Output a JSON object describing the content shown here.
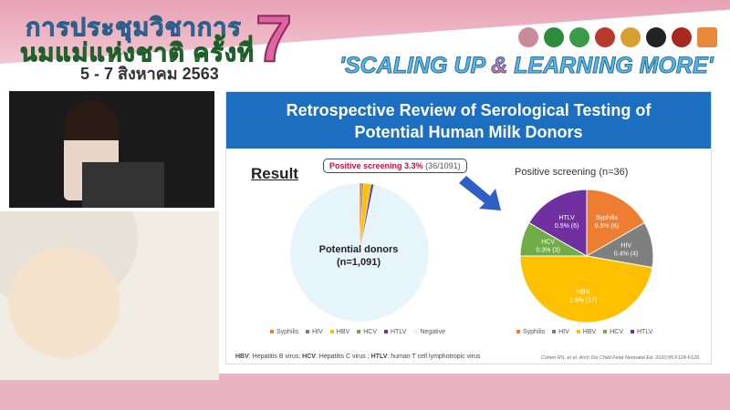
{
  "banner": {
    "title_line1": "การประชุมวิชาการ",
    "title_line2": "นมแม่แห่งชาติ ครั้งที่",
    "edition": "7",
    "dates": "5 - 7 สิงหาคม 2563",
    "tagline_part1": "'SCALING UP ",
    "tagline_amp": "&",
    "tagline_part2": " LEARNING MORE'"
  },
  "logos": [
    "breastfeeding-logo",
    "moh-logo",
    "moh-logo-2",
    "royal-college-logo",
    "royal-college-logo-2",
    "university-logo",
    "organization-logo",
    "thaihealth-logo"
  ],
  "slide": {
    "title_line1": "Retrospective Review of Serological Testing of",
    "title_line2": "Potential Human Milk Donors",
    "result_heading": "Result",
    "callout_bold": "Positive screening 3.3%",
    "callout_count": "(36/1091)",
    "left_center_label1": "Potential donors",
    "left_center_label2": "(n=1,091)",
    "right_title": "Positive screening (n=36)",
    "footnote": {
      "hbv": "HBV",
      "hbv_def": ": Hepatitis B virus; ",
      "hcv": "HCV",
      "hcv_def": ": Hepatitis C virus ; ",
      "htlv": "HTLV",
      "htlv_def": ": human T cell lymphotropic virus"
    },
    "citation": "Cohen RS, et al. Arch Dis Child Fetal Neonatal Ed. 2010;95:F118-F120."
  },
  "chart_data": [
    {
      "type": "pie",
      "title": "",
      "center_label": "Potential donors (n=1,091)",
      "categories": [
        "Syphilis",
        "HIV",
        "HBV",
        "HCV",
        "HTLV",
        "Negative"
      ],
      "values": [
        6,
        4,
        17,
        3,
        6,
        1055
      ],
      "colors": [
        "#ed7d31",
        "#7f7f7f",
        "#ffc000",
        "#70ad47",
        "#7030a0",
        "#e6f5fb"
      ],
      "legend": "bottom"
    },
    {
      "type": "pie",
      "title": "Positive screening (n=36)",
      "categories": [
        "Syphilis",
        "HIV",
        "HBV",
        "HCV",
        "HTLV"
      ],
      "values": [
        6,
        4,
        17,
        3,
        6
      ],
      "labels": [
        "0.5% (6)",
        "0.4% (4)",
        "1.6% (17)",
        "0.3% (3)",
        "0.5% (6)"
      ],
      "colors": [
        "#ed7d31",
        "#7f7f7f",
        "#ffc000",
        "#70ad47",
        "#7030a0"
      ],
      "legend": "bottom"
    }
  ]
}
